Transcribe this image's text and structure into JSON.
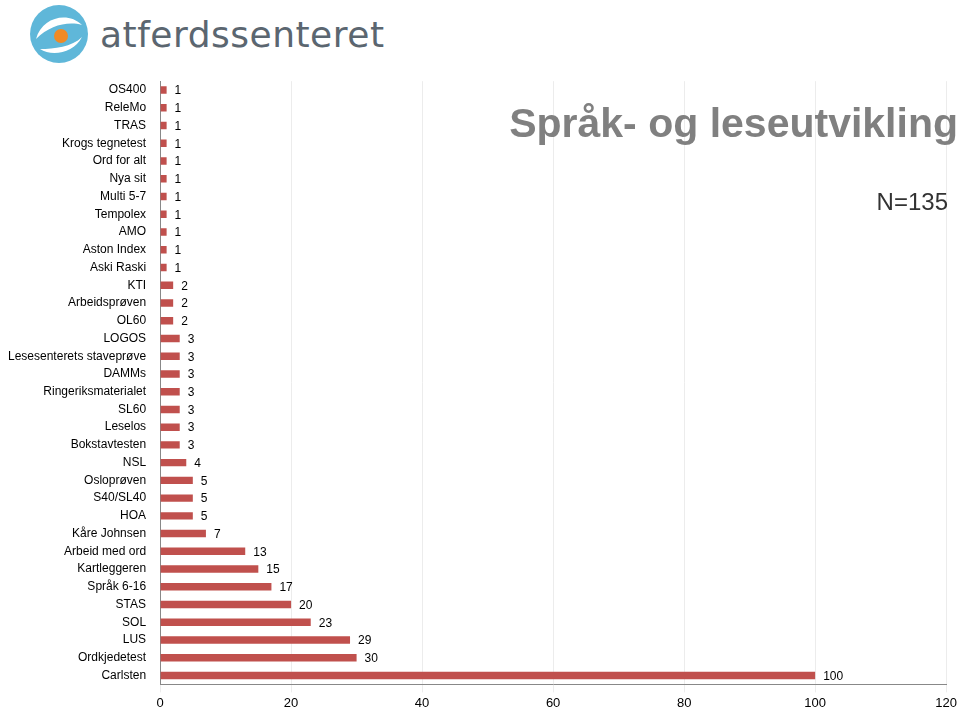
{
  "header": {
    "logo": "atferdssenteret"
  },
  "chart_data": {
    "type": "bar",
    "title": "Språk- og leseutvikling",
    "annotations": [
      "N=135"
    ],
    "orientation": "horizontal",
    "categories": [
      "OS400",
      "ReleMo",
      "TRAS",
      "Krogs tegnetest",
      "Ord for alt",
      "Nya sit",
      "Multi 5-7",
      "Tempolex",
      "AMO",
      "Aston Index",
      "Aski Raski",
      "KTI",
      "Arbeidsprøven",
      "OL60",
      "LOGOS",
      "Lesesenterets staveprøve",
      "DAMMs",
      "Ringeriksmaterialet",
      "SL60",
      "Leselos",
      "Bokstavtesten",
      "NSL",
      "Osloprøven",
      "S40/SL40",
      "HOA",
      "Kåre Johnsen",
      "Arbeid med ord",
      "Kartleggeren",
      "Språk 6-16",
      "STAS",
      "SOL",
      "LUS",
      "Ordkjedetest",
      "Carlsten"
    ],
    "values": [
      1,
      1,
      1,
      1,
      1,
      1,
      1,
      1,
      1,
      1,
      1,
      2,
      2,
      2,
      3,
      3,
      3,
      3,
      3,
      3,
      3,
      4,
      5,
      5,
      5,
      7,
      13,
      15,
      17,
      20,
      23,
      29,
      30,
      100
    ],
    "color": "#c0504d",
    "xlim": [
      0,
      120
    ],
    "xticks": [
      0,
      20,
      40,
      60,
      80,
      100,
      120
    ],
    "grid": true,
    "data_labels": true
  }
}
